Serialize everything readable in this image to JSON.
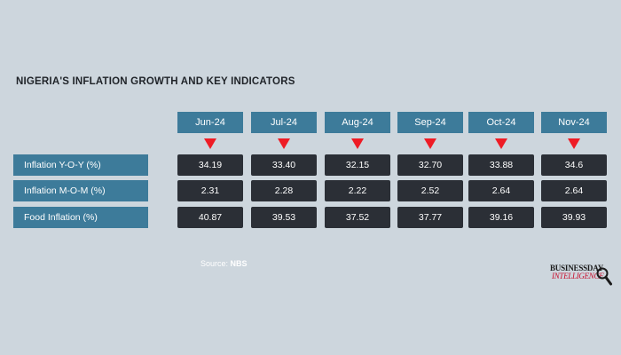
{
  "title": "NIGERIA'S INFLATION GROWTH AND KEY INDICATORS",
  "chart_data": {
    "type": "table",
    "title": "NIGERIA'S INFLATION GROWTH AND KEY INDICATORS",
    "categories": [
      "Jun-24",
      "Jul-24",
      "Aug-24",
      "Sep-24",
      "Oct-24",
      "Nov-24"
    ],
    "series": [
      {
        "name": "Inflation Y-O-Y (%)",
        "values": [
          "34.19",
          "33.40",
          "32.15",
          "32.70",
          "33.88",
          "34.6"
        ]
      },
      {
        "name": "Inflation M-O-M (%)",
        "values": [
          "2.31",
          "2.28",
          "2.22",
          "2.52",
          "2.64",
          "2.64"
        ]
      },
      {
        "name": "Food Inflation (%)",
        "values": [
          "40.87",
          "39.53",
          "37.52",
          "37.77",
          "39.16",
          "39.93"
        ]
      }
    ]
  },
  "source": {
    "label": "Source:",
    "value": "NBS"
  },
  "logo": {
    "line1": "BUSINESSDAY",
    "line2": "INTELLIGENCE"
  },
  "colors": {
    "header": "#3d7b9a",
    "cell": "#2b2f36",
    "arrow": "#ee1c25",
    "background": "#cdd6dd"
  }
}
